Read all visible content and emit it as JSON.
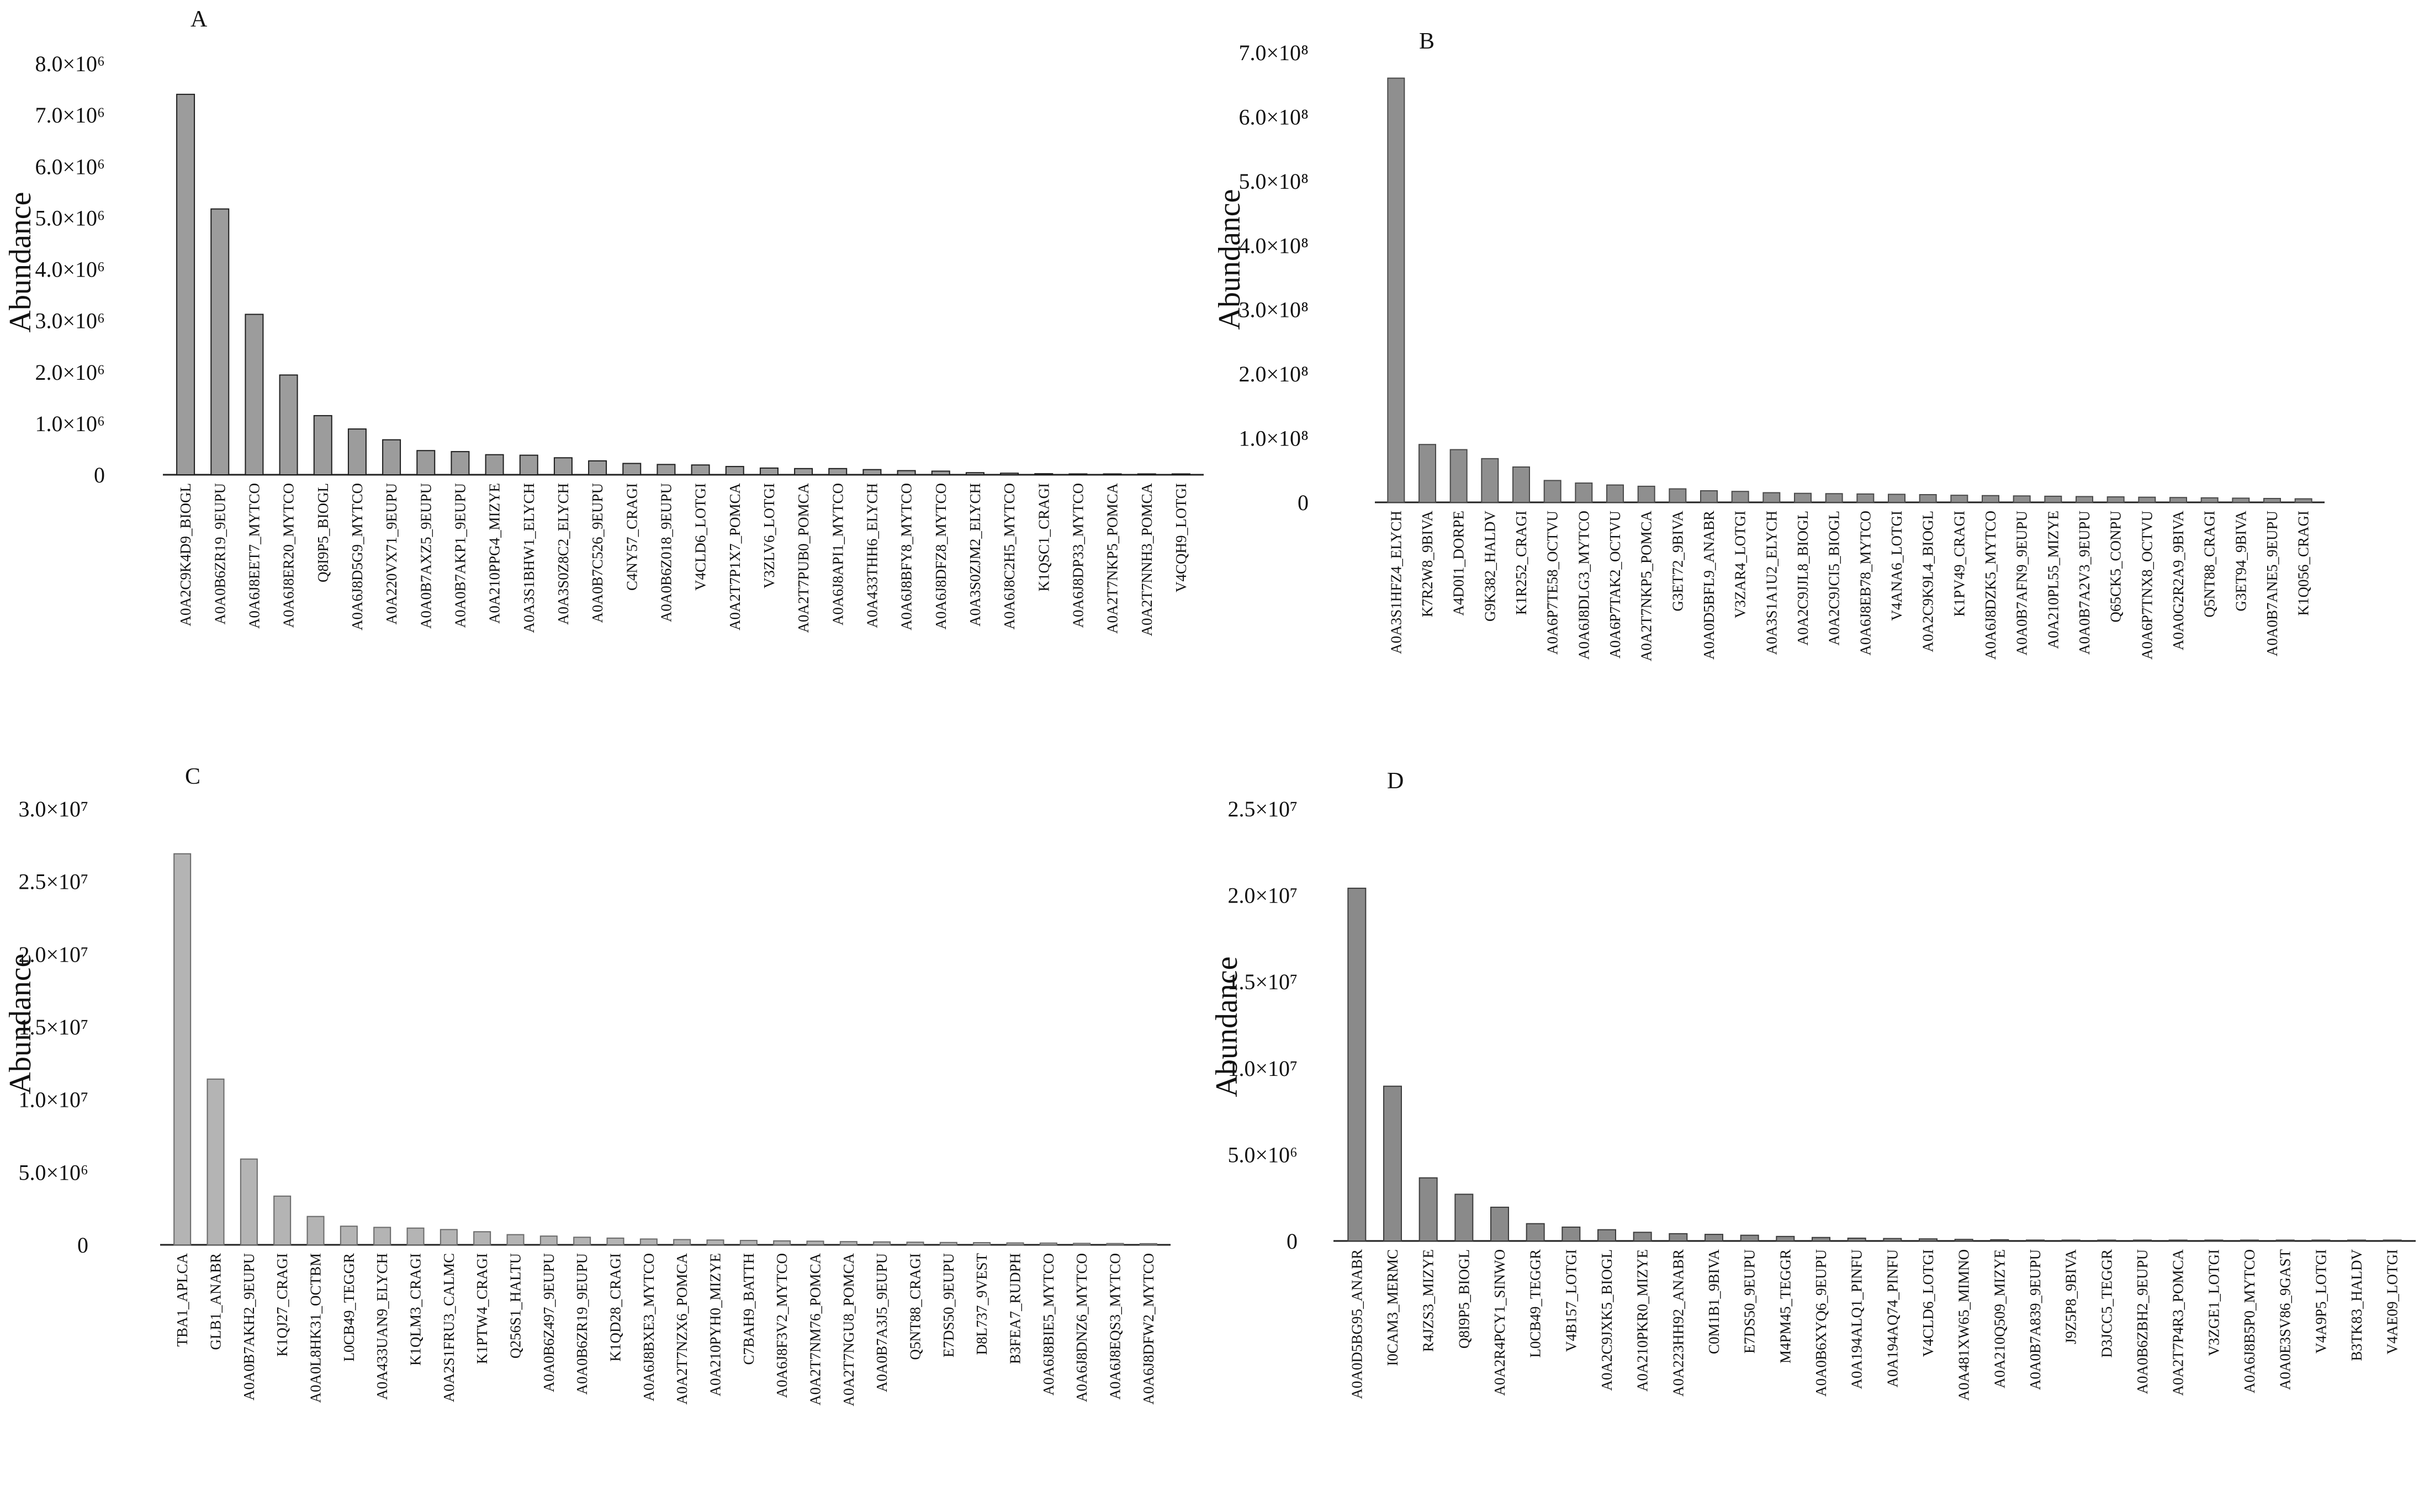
{
  "figure": {
    "description_id": "abundance-panels"
  },
  "chart_data": [
    {
      "id": "A",
      "type": "bar",
      "title": "",
      "panel_label": "A",
      "xlabel": "",
      "ylabel": "Abundance",
      "ylim": [
        0,
        8000000
      ],
      "grid": false,
      "categories": [
        "A0A2C9K4D9_BIOGL",
        "A0A0B6ZR19_9EUPU",
        "A0A6J8EET7_MYTCO",
        "A0A6J8ER20_MYTCO",
        "Q8I9P5_BIOGL",
        "A0A6J8D5G9_MYTCO",
        "A0A220VX71_9EUPU",
        "A0A0B7AXZ5_9EUPU",
        "A0A0B7AKP1_9EUPU",
        "A0A210PPG4_MIZYE",
        "A0A3S1BHW1_ELYCH",
        "A0A3S0Z8C2_ELYCH",
        "A0A0B7C526_9EUPU",
        "C4NY57_CRAGI",
        "A0A0B6Z018_9EUPU",
        "V4CLD6_LOTGI",
        "A0A2T7P1X7_POMCA",
        "V3ZLV6_LOTGI",
        "A0A2T7PUB0_POMCA",
        "A0A6J8API1_MYTCO",
        "A0A433THH6_ELYCH",
        "A0A6J8BFY8_MYTCO",
        "A0A6J8DFZ8_MYTCO",
        "A0A3S0ZJM2_ELYCH",
        "A0A6J8C2H5_MYTCO",
        "K1QSC1_CRAGI",
        "A0A6J8DP33_MYTCO",
        "A0A2T7NKP5_POMCA",
        "A0A2T7NNH3_POMCA",
        "V4CQH9_LOTGI"
      ],
      "values": [
        7400000,
        5170000,
        3120000,
        1940000,
        1150000,
        890000,
        680000,
        470000,
        450000,
        390000,
        380000,
        330000,
        270000,
        220000,
        200000,
        190000,
        160000,
        130000,
        120000,
        120000,
        100000,
        80000,
        70000,
        40000,
        30000,
        20000,
        8000,
        5000,
        4000,
        3000
      ],
      "ticks": [
        {
          "value": 8000000,
          "label": "8.0×10⁶"
        },
        {
          "value": 7000000,
          "label": "7.0×10⁶"
        },
        {
          "value": 6000000,
          "label": "6.0×10⁶"
        },
        {
          "value": 5000000,
          "label": "5.0×10⁶"
        },
        {
          "value": 4000000,
          "label": "4.0×10⁶"
        },
        {
          "value": 3000000,
          "label": "3.0×10⁶"
        },
        {
          "value": 2000000,
          "label": "2.0×10⁶"
        },
        {
          "value": 1000000,
          "label": "1.0×10⁶"
        },
        {
          "value": 0,
          "label": "0"
        }
      ],
      "bar_color": "#9c9c9c",
      "bar_stroke": "#1e1e1e"
    },
    {
      "id": "B",
      "type": "bar",
      "title": "",
      "panel_label": "B",
      "xlabel": "",
      "ylabel": "Abundance",
      "ylim": [
        0,
        700000000
      ],
      "grid": false,
      "categories": [
        "A0A3S1HFZ4_ELYCH",
        "K7R2W8_9BIVA",
        "A4D0I1_DORPE",
        "G9K382_HALDV",
        "K1R252_CRAGI",
        "A0A6P7TE58_OCTVU",
        "A0A6J8DLG3_MYTCO",
        "A0A6P7TAK2_OCTVU",
        "A0A2T7NKP5_POMCA",
        "G3ET72_9BIVA",
        "A0A0D5BFL9_ANABR",
        "V3ZAR4_LOTGI",
        "A0A3S1A1U2_ELYCH",
        "A0A2C9JJL8_BIOGL",
        "A0A2C9JCI5_BIOGL",
        "A0A6J8EB78_MYTCO",
        "V4ANA6_LOTGI",
        "A0A2C9K9L4_BIOGL",
        "K1PV49_CRAGI",
        "A0A6J8DZK5_MYTCO",
        "A0A0B7AFN9_9EUPU",
        "A0A210PL55_MIZYE",
        "A0A0B7A2V3_9EUPU",
        "Q65CK5_CONPU",
        "A0A6P7TNX8_OCTVU",
        "A0A0G2R2A9_9BIVA",
        "Q5NT88_CRAGI",
        "G3ET94_9BIVA",
        "A0A0B7ANE5_9EUPU",
        "K1Q056_CRAGI"
      ],
      "values": [
        660000000,
        90000000,
        82000000,
        68000000,
        55000000,
        34000000,
        30000000,
        27000000,
        25000000,
        21000000,
        18000000,
        17000000,
        15000000,
        14000000,
        13500000,
        13000000,
        12500000,
        12000000,
        11000000,
        10500000,
        10000000,
        9500000,
        9000000,
        8500000,
        8000000,
        7500000,
        7000000,
        6500000,
        6000000,
        5500000
      ],
      "ticks": [
        {
          "value": 700000000,
          "label": "7.0×10⁸"
        },
        {
          "value": 600000000,
          "label": "6.0×10⁸"
        },
        {
          "value": 500000000,
          "label": "5.0×10⁸"
        },
        {
          "value": 400000000,
          "label": "4.0×10⁸"
        },
        {
          "value": 300000000,
          "label": "3.0×10⁸"
        },
        {
          "value": 200000000,
          "label": "2.0×10⁸"
        },
        {
          "value": 100000000,
          "label": "1.0×10⁸"
        },
        {
          "value": 0,
          "label": "0"
        }
      ],
      "bar_color": "#8f8f8f",
      "bar_stroke": "#4a4a4a"
    },
    {
      "id": "C",
      "type": "bar",
      "title": "",
      "panel_label": "C",
      "xlabel": "",
      "ylabel": "Abundance",
      "ylim": [
        0,
        30000000
      ],
      "grid": false,
      "categories": [
        "TBA1_APLCA",
        "GLB1_ANABR",
        "A0A0B7AKH2_9EUPU",
        "K1QJ27_CRAGI",
        "A0A0L8HK31_OCTBM",
        "L0CB49_TEGGR",
        "A0A433UAN9_ELYCH",
        "K1QLM3_CRAGI",
        "A0A2S1FRU3_CALMC",
        "K1PTW4_CRAGI",
        "Q256S1_HALTU",
        "A0A0B6Z497_9EUPU",
        "A0A0B6ZR19_9EUPU",
        "K1QD28_CRAGI",
        "A0A6J8BXE3_MYTCO",
        "A0A2T7NZX6_POMCA",
        "A0A210PYH0_MIZYE",
        "C7BAH9_BATTH",
        "A0A6J8F3V2_MYTCO",
        "A0A2T7NM76_POMCA",
        "A0A2T7NGU8_POMCA",
        "A0A0B7A3J5_9EUPU",
        "Q5NT88_CRAGI",
        "E7DS50_9EUPU",
        "D8L737_9VEST",
        "B3FEA7_RUDPH",
        "A0A6J8BIE5_MYTCO",
        "A0A6J8DNZ6_MYTCO",
        "A0A6J8EQS3_MYTCO",
        "A0A6J8DFW2_MYTCO"
      ],
      "values": [
        26900000,
        11400000,
        5900000,
        3350000,
        1950000,
        1280000,
        1200000,
        1150000,
        1050000,
        900000,
        700000,
        600000,
        520000,
        460000,
        400000,
        360000,
        330000,
        300000,
        270000,
        250000,
        220000,
        200000,
        180000,
        160000,
        150000,
        130000,
        120000,
        100000,
        90000,
        80000
      ],
      "ticks": [
        {
          "value": 30000000,
          "label": "3.0×10⁷"
        },
        {
          "value": 25000000,
          "label": "2.5×10⁷"
        },
        {
          "value": 20000000,
          "label": "2.0×10⁷"
        },
        {
          "value": 15000000,
          "label": "1.5×10⁷"
        },
        {
          "value": 10000000,
          "label": "1.0×10⁷"
        },
        {
          "value": 5000000,
          "label": "5.0×10⁶"
        },
        {
          "value": 0,
          "label": "0"
        }
      ],
      "bar_color": "#b4b4b4",
      "bar_stroke": "#6a6a6a"
    },
    {
      "id": "D",
      "type": "bar",
      "title": "",
      "panel_label": "D",
      "xlabel": "",
      "ylabel": "Abundance",
      "ylim": [
        0,
        25000000
      ],
      "grid": false,
      "categories": [
        "A0A0D5BG95_ANABR",
        "I0CAM3_MERMC",
        "R4JZS3_MIZYE",
        "Q8I9P5_BIOGL",
        "A0A2R4PCY1_SINWO",
        "L0CB49_TEGGR",
        "V4B157_LOTGI",
        "A0A2C9JXK5_BIOGL",
        "A0A210PKR0_MIZYE",
        "A0A223HH92_ANABR",
        "C0M1B1_9BIVA",
        "E7DS50_9EUPU",
        "M4PM45_TEGGR",
        "A0A0B6XYQ6_9EUPU",
        "A0A194ALQ1_PINFU",
        "A0A194AQ74_PINFU",
        "V4CLD6_LOTGI",
        "A0A481XW65_MIMNO",
        "A0A210Q509_MIZYE",
        "A0A0B7A839_9EUPU",
        "J9Z5P8_9BIVA",
        "D3JCC5_TEGGR",
        "A0A0B6ZBH2_9EUPU",
        "A0A2T7P4R3_POMCA",
        "V3ZGE1_LOTGI",
        "A0A6J8B5P0_MYTCO",
        "A0A0E3SV86_9GAST",
        "V4A9P5_LOTGI",
        "B3TK83_HALDV",
        "V4AE09_LOTGI"
      ],
      "values": [
        20400000,
        8950000,
        3650000,
        2700000,
        1950000,
        1000000,
        800000,
        650000,
        500000,
        420000,
        380000,
        330000,
        260000,
        200000,
        160000,
        140000,
        120000,
        90000,
        70000,
        50000,
        40000,
        30000,
        20000,
        15000,
        12000,
        10000,
        8000,
        6000,
        5000,
        4000
      ],
      "ticks": [
        {
          "value": 25000000,
          "label": "2.5×10⁷"
        },
        {
          "value": 20000000,
          "label": "2.0×10⁷"
        },
        {
          "value": 15000000,
          "label": "1.5×10⁷"
        },
        {
          "value": 10000000,
          "label": "1.0×10⁷"
        },
        {
          "value": 5000000,
          "label": "5.0×10⁶"
        },
        {
          "value": 0,
          "label": "0"
        }
      ],
      "bar_color": "#8a8a8a",
      "bar_stroke": "#3c3c3c"
    }
  ]
}
